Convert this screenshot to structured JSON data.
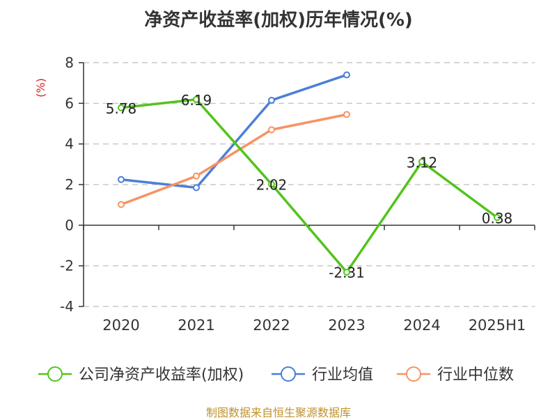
{
  "chart_data": {
    "type": "line",
    "title": "净资产收益率(加权)历年情况(%)",
    "ylabel": "(%)",
    "categories": [
      "2020",
      "2021",
      "2022",
      "2023",
      "2024",
      "2025H1"
    ],
    "ylim": [
      -4,
      8
    ],
    "yticks": [
      -4,
      -2,
      0,
      2,
      4,
      6,
      8
    ],
    "grid": true,
    "legend_position": "bottom",
    "series": [
      {
        "name": "公司净资产收益率(加权)",
        "color": "#52c41a",
        "values": [
          5.78,
          6.19,
          2.02,
          -2.31,
          3.12,
          0.38
        ],
        "labels": [
          "5.78",
          "6.19",
          "2.02",
          "-2.31",
          "3.12",
          "0.38"
        ]
      },
      {
        "name": "行业均值",
        "color": "#4a7fd6",
        "values": [
          2.25,
          1.85,
          6.15,
          7.4,
          null,
          null
        ]
      },
      {
        "name": "行业中位数",
        "color": "#f79263",
        "values": [
          1.02,
          2.42,
          4.7,
          5.45,
          null,
          null
        ]
      }
    ],
    "source": "制图数据来自恒生聚源数据库"
  }
}
